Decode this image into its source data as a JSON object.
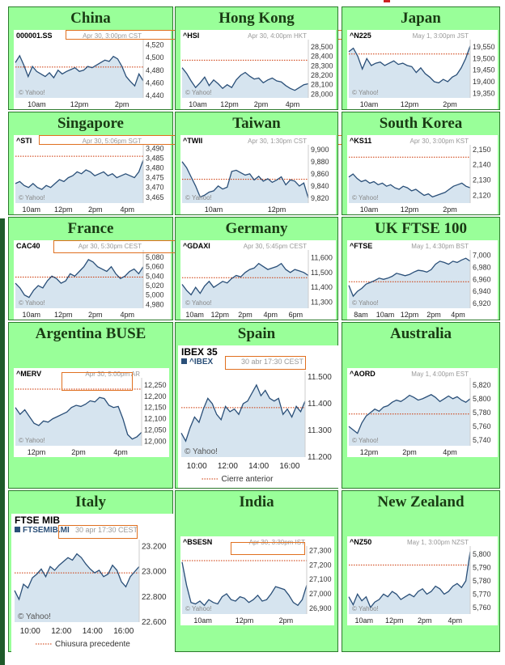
{
  "colors": {
    "cell_bg": "#99ff99",
    "cell_border": "#2c7a2c",
    "title": "#1a3b14",
    "line": "#2a4f78",
    "fill": "#d6e4ef",
    "prev_close": "#cc3300",
    "highlight_box": "#e07020"
  },
  "cells": [
    {
      "title": "China"
    },
    {
      "title": "Hong Kong"
    },
    {
      "title": "Japan"
    },
    {
      "title": "Singapore"
    },
    {
      "title": "Taiwan"
    },
    {
      "title": "South Korea"
    },
    {
      "title": "France"
    },
    {
      "title": "Germany"
    },
    {
      "title": "UK FTSE 100"
    },
    {
      "title": "Argentina BUSE"
    },
    {
      "title": "Spain"
    },
    {
      "title": "Australia"
    },
    {
      "title": "Italy"
    },
    {
      "title": "India"
    },
    {
      "title": "New Zealand"
    }
  ],
  "chart_data": [
    {
      "type": "line",
      "symbol": "000001.SS",
      "timestamp": "Apr 30, 3:00pm CST",
      "watermark": "© Yahoo!",
      "y_ticks": [
        4520,
        4500,
        4480,
        4460,
        4440
      ],
      "ylim": [
        4436,
        4526
      ],
      "x_ticks": [
        "10am",
        "12pm",
        "2pm"
      ],
      "prev_close": 4485,
      "values": [
        4492,
        4503,
        4488,
        4470,
        4486,
        4478,
        4474,
        4470,
        4476,
        4468,
        4480,
        4474,
        4478,
        4481,
        4484,
        4478,
        4480,
        4486,
        4484,
        4488,
        4492,
        4496,
        4494,
        4502,
        4498,
        4486,
        4470,
        4462,
        4455,
        4474,
        4463
      ]
    },
    {
      "type": "line",
      "symbol": "^HSI",
      "timestamp": "Apr 30, 4:00pm HKT",
      "watermark": "© Yahoo!",
      "y_ticks": [
        28500,
        28400,
        28300,
        28200,
        28100,
        28000
      ],
      "ylim": [
        27960,
        28560
      ],
      "x_ticks": [
        "10am",
        "12pm",
        "2pm",
        "4pm"
      ],
      "prev_close": 28360,
      "values": [
        28280,
        28220,
        28140,
        28070,
        28120,
        28180,
        28090,
        28150,
        28110,
        28060,
        28100,
        28070,
        28150,
        28200,
        28230,
        28190,
        28160,
        28170,
        28120,
        28150,
        28170,
        28140,
        28130,
        28090,
        28060,
        28040,
        28070,
        28100,
        28110
      ]
    },
    {
      "type": "line",
      "symbol": "^N225",
      "timestamp": "May 1, 3:00pm JST",
      "watermark": "© Yahoo!",
      "y_ticks": [
        19550,
        19500,
        19450,
        19400,
        19350
      ],
      "ylim": [
        19330,
        19575
      ],
      "x_ticks": [
        "10am",
        "12pm",
        "2pm"
      ],
      "prev_close": 19520,
      "values": [
        19530,
        19545,
        19510,
        19455,
        19500,
        19470,
        19480,
        19485,
        19470,
        19480,
        19490,
        19475,
        19480,
        19470,
        19465,
        19440,
        19460,
        19435,
        19420,
        19400,
        19395,
        19410,
        19400,
        19420,
        19430,
        19460,
        19500,
        19555
      ]
    },
    {
      "type": "line",
      "symbol": "^STI",
      "timestamp": "Apr 30, 5:06pm SGT",
      "watermark": "© Yahoo!",
      "y_ticks": [
        3490,
        3485,
        3480,
        3475,
        3470,
        3465
      ],
      "ylim": [
        3462,
        3491
      ],
      "x_ticks": [
        "10am",
        "12pm",
        "2pm",
        "4pm"
      ],
      "prev_close": 3486,
      "values": [
        3472,
        3473,
        3471,
        3470,
        3472,
        3470,
        3469,
        3471,
        3470,
        3472,
        3474,
        3473,
        3475,
        3476,
        3478,
        3477,
        3479,
        3478,
        3476,
        3477,
        3478,
        3476,
        3477,
        3475,
        3476,
        3477,
        3476,
        3475,
        3478,
        3484
      ]
    },
    {
      "type": "line",
      "symbol": "^TWII",
      "timestamp": "Apr 30, 1:30pm CST",
      "watermark": "© Yahoo!",
      "y_ticks": [
        9900,
        9880,
        9860,
        9840,
        9820
      ],
      "ylim": [
        9812,
        9905
      ],
      "x_ticks": [
        "10am",
        "12pm"
      ],
      "prev_close": 9851,
      "values": [
        9880,
        9870,
        9855,
        9840,
        9822,
        9825,
        9830,
        9832,
        9840,
        9835,
        9838,
        9864,
        9866,
        9862,
        9858,
        9860,
        9850,
        9856,
        9848,
        9852,
        9846,
        9850,
        9855,
        9842,
        9850,
        9848,
        9840,
        9845,
        9820
      ]
    },
    {
      "type": "line",
      "symbol": "^KS11",
      "timestamp": "Apr 30, 3:00pm KST",
      "watermark": "© Yahoo!",
      "y_ticks": [
        2150,
        2140,
        2130,
        2120
      ],
      "ylim": [
        2115,
        2152
      ],
      "x_ticks": [
        "10am",
        "12pm",
        "2pm"
      ],
      "prev_close": 2145,
      "values": [
        2132,
        2134,
        2131,
        2129,
        2130,
        2128,
        2129,
        2127,
        2128,
        2126,
        2127,
        2125,
        2124,
        2126,
        2125,
        2123,
        2124,
        2122,
        2120,
        2121,
        2119,
        2120,
        2121,
        2122,
        2124,
        2126,
        2127,
        2128,
        2126,
        2125
      ]
    },
    {
      "type": "line",
      "symbol": "CAC40",
      "timestamp": "Apr 30, 5:30pm CEST",
      "watermark": "© Yahoo!",
      "y_ticks": [
        5080,
        5060,
        5040,
        5020,
        5000,
        4980
      ],
      "ylim": [
        4972,
        5092
      ],
      "x_ticks": [
        "10am",
        "12pm",
        "2pm",
        "4pm"
      ],
      "prev_close": 5038,
      "values": [
        5025,
        5015,
        5000,
        4995,
        5010,
        5020,
        5015,
        5030,
        5040,
        5035,
        5025,
        5030,
        5045,
        5040,
        5050,
        5060,
        5075,
        5070,
        5060,
        5055,
        5050,
        5060,
        5045,
        5035,
        5040,
        5050,
        5055,
        5045,
        5060
      ]
    },
    {
      "type": "line",
      "symbol": "^GDAXI",
      "timestamp": "Apr 30, 5:45pm CEST",
      "watermark": "© Yahoo!",
      "y_ticks": [
        11600,
        11500,
        11400,
        11300
      ],
      "ylim": [
        11260,
        11640
      ],
      "x_ticks": [
        "10am",
        "12pm",
        "2pm",
        "4pm",
        "6pm"
      ],
      "prev_close": 11465,
      "values": [
        11420,
        11380,
        11350,
        11400,
        11360,
        11410,
        11440,
        11400,
        11420,
        11440,
        11430,
        11460,
        11480,
        11470,
        11500,
        11520,
        11530,
        11560,
        11540,
        11520,
        11530,
        11540,
        11560,
        11520,
        11500,
        11520,
        11510,
        11500,
        11480
      ]
    },
    {
      "type": "line",
      "symbol": "^FTSE",
      "timestamp": "May 1, 4:30pm BST",
      "watermark": "© Yahoo!",
      "y_ticks": [
        7000,
        6980,
        6960,
        6940,
        6920
      ],
      "ylim": [
        6912,
        7006
      ],
      "x_ticks": [
        "8am",
        "10am",
        "12pm",
        "2pm",
        "4pm"
      ],
      "prev_close": 6956,
      "values": [
        6950,
        6932,
        6940,
        6945,
        6952,
        6955,
        6958,
        6962,
        6960,
        6962,
        6965,
        6970,
        6968,
        6966,
        6968,
        6972,
        6975,
        6974,
        6972,
        6976,
        6985,
        6990,
        6988,
        6985,
        6990,
        6988,
        6992,
        6995,
        6990
      ]
    },
    {
      "type": "line",
      "symbol": "^MERV",
      "timestamp": "Apr 30, 5:00pm AR",
      "watermark": "© Yahoo!",
      "y_ticks": [
        12250,
        12200,
        12150,
        12100,
        12050,
        12000
      ],
      "ylim": [
        11980,
        12275
      ],
      "x_ticks": [
        "12pm",
        "2pm",
        "4pm"
      ],
      "prev_close": 12232,
      "values": [
        12150,
        12120,
        12140,
        12110,
        12080,
        12070,
        12090,
        12085,
        12100,
        12110,
        12120,
        12130,
        12150,
        12160,
        12155,
        12165,
        12180,
        12175,
        12195,
        12190,
        12160,
        12150,
        12155,
        12100,
        12030,
        12010,
        12020,
        12040
      ]
    },
    {
      "type": "line",
      "title": "IBEX 35",
      "symbol": "^IBEX",
      "timestamp": "30 abr 17:30 CEST",
      "watermark": "© Yahoo!",
      "legend": "Cierre anterior",
      "y_ticks": [
        "11.500",
        "11.400",
        "11.300",
        "11.200"
      ],
      "ylim": [
        11200,
        11515
      ],
      "x_ticks": [
        "10:00",
        "12:00",
        "14:00",
        "16:00"
      ],
      "prev_close": 11385,
      "values": [
        11290,
        11260,
        11310,
        11350,
        11330,
        11380,
        11420,
        11400,
        11360,
        11340,
        11390,
        11370,
        11380,
        11360,
        11400,
        11410,
        11440,
        11470,
        11430,
        11450,
        11420,
        11410,
        11420,
        11360,
        11380,
        11350,
        11390,
        11370,
        11410
      ]
    },
    {
      "type": "line",
      "symbol": "^AORD",
      "timestamp": "May 1, 4:00pm EST",
      "watermark": "© Yahoo!",
      "y_ticks": [
        5820,
        5800,
        5780,
        5760,
        5740
      ],
      "ylim": [
        5732,
        5828
      ],
      "x_ticks": [
        "12pm",
        "2pm",
        "4pm"
      ],
      "prev_close": 5778,
      "values": [
        5760,
        5755,
        5750,
        5765,
        5775,
        5780,
        5785,
        5782,
        5788,
        5790,
        5795,
        5798,
        5796,
        5800,
        5805,
        5802,
        5798,
        5800,
        5803,
        5806,
        5802,
        5796,
        5800,
        5804,
        5800,
        5803,
        5798,
        5795,
        5800
      ]
    },
    {
      "type": "line",
      "title": "FTSE MIB",
      "symbol": "FTSEMIB.MI",
      "timestamp": "30 apr 17:30 CEST",
      "watermark": "© Yahoo!",
      "legend": "Chiusura precedente",
      "y_ticks": [
        "23.200",
        "23.000",
        "22.800",
        "22.600"
      ],
      "ylim": [
        22600,
        23240
      ],
      "x_ticks": [
        "10:00",
        "12:00",
        "14:00",
        "16:00"
      ],
      "prev_close": 22990,
      "values": [
        22850,
        22780,
        22900,
        22870,
        22950,
        22980,
        23020,
        22960,
        23040,
        23010,
        23050,
        23080,
        23110,
        23090,
        23140,
        23110,
        23060,
        23020,
        22990,
        23010,
        22960,
        22980,
        23050,
        23010,
        22920,
        22880,
        22960,
        23000,
        23040
      ]
    },
    {
      "type": "line",
      "symbol": "^BSESN",
      "timestamp": "Apr 30, 3:30pm IST",
      "watermark": "© Yahoo!",
      "y_ticks": [
        27300,
        27200,
        27100,
        27000,
        26900
      ],
      "ylim": [
        26860,
        27320
      ],
      "x_ticks": [
        "10am",
        "12pm",
        "2pm"
      ],
      "prev_close": 27230,
      "values": [
        27220,
        27060,
        26940,
        26930,
        26950,
        26920,
        26960,
        26940,
        26930,
        26980,
        27000,
        26960,
        26950,
        26980,
        26970,
        26940,
        26960,
        26990,
        26950,
        26960,
        27000,
        27050,
        27040,
        27030,
        26990,
        26940,
        26920,
        26960,
        27060
      ]
    },
    {
      "type": "line",
      "symbol": "^NZ50",
      "timestamp": "May 1, 3:00pm NZST",
      "watermark": "© Yahoo!",
      "y_ticks": [
        5800,
        5790,
        5780,
        5770,
        5760
      ],
      "ylim": [
        5755,
        5805
      ],
      "x_ticks": [
        "10am",
        "12pm",
        "2pm",
        "4pm"
      ],
      "prev_close": 5792,
      "values": [
        5768,
        5762,
        5770,
        5765,
        5768,
        5760,
        5764,
        5766,
        5770,
        5768,
        5772,
        5770,
        5766,
        5768,
        5770,
        5768,
        5772,
        5774,
        5770,
        5772,
        5776,
        5774,
        5770,
        5772,
        5776,
        5778,
        5775,
        5780,
        5802
      ]
    }
  ]
}
